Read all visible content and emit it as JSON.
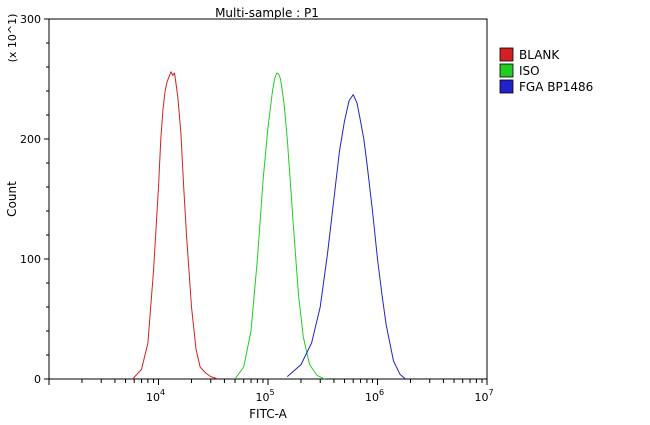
{
  "chart_data": {
    "type": "line",
    "title": "Multi-sample : P1",
    "xlabel": "FITC-A",
    "ylabel": "Count",
    "y_multiplier_label": "(x 10^1)",
    "x_scale": "log",
    "xlim": [
      1000,
      10000000
    ],
    "ylim": [
      0,
      300
    ],
    "x_ticks": [
      {
        "value": 10000,
        "base": "10",
        "exp": "4"
      },
      {
        "value": 100000,
        "base": "10",
        "exp": "5"
      },
      {
        "value": 1000000,
        "base": "10",
        "exp": "6"
      },
      {
        "value": 10000000,
        "base": "10",
        "exp": "7"
      }
    ],
    "y_ticks": [
      0,
      100,
      200,
      300
    ],
    "grid": false,
    "legend_position": "top-right",
    "series": [
      {
        "name": "BLANK",
        "color": "#d42020",
        "x": [
          5800,
          7000,
          8000,
          9000,
          10000,
          10500,
          11000,
          11500,
          12000,
          12500,
          13000,
          13500,
          14000,
          14500,
          15000,
          16000,
          17000,
          18000,
          20000,
          22000,
          24000,
          27000,
          30000,
          35000
        ],
        "y": [
          0,
          8,
          30,
          90,
          160,
          200,
          225,
          240,
          248,
          252,
          256,
          253,
          255,
          245,
          235,
          205,
          160,
          120,
          60,
          25,
          10,
          5,
          2,
          0
        ]
      },
      {
        "name": "ISO",
        "color": "#22cc22",
        "x": [
          50000,
          60000,
          70000,
          80000,
          90000,
          100000,
          110000,
          115000,
          120000,
          125000,
          130000,
          140000,
          150000,
          170000,
          190000,
          210000,
          240000,
          280000,
          330000
        ],
        "y": [
          0,
          10,
          40,
          100,
          165,
          210,
          240,
          250,
          255,
          254,
          250,
          230,
          200,
          130,
          70,
          35,
          12,
          3,
          0
        ]
      },
      {
        "name": "FGA BP1486",
        "color": "#2222cc",
        "x": [
          150000,
          200000,
          250000,
          300000,
          350000,
          400000,
          450000,
          500000,
          550000,
          600000,
          650000,
          700000,
          750000,
          800000,
          900000,
          1000000,
          1100000,
          1200000,
          1400000,
          1600000,
          1800000
        ],
        "y": [
          2,
          12,
          30,
          60,
          105,
          150,
          190,
          215,
          232,
          237,
          230,
          215,
          200,
          180,
          140,
          100,
          70,
          45,
          15,
          4,
          0
        ]
      }
    ]
  }
}
